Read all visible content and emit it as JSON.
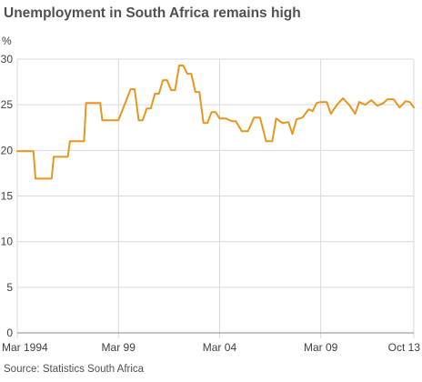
{
  "chart_data": {
    "type": "line",
    "title": "Unemployment in South Africa remains high",
    "ylabel": "%",
    "xlabel": "",
    "source": "Source: Statistics South Africa",
    "ylim": [
      0,
      30
    ],
    "y_ticks": [
      0,
      5,
      10,
      15,
      20,
      25,
      30
    ],
    "x_ticks": [
      {
        "label": "Mar 1994",
        "value": 1994.2
      },
      {
        "label": "Mar 99",
        "value": 1999.2
      },
      {
        "label": "Mar 04",
        "value": 2004.2
      },
      {
        "label": "Mar 09",
        "value": 2009.2
      },
      {
        "label": "Oct 13",
        "value": 2013.8
      }
    ],
    "xlim": [
      1994.2,
      2013.8
    ],
    "grid": "vertical and horizontal",
    "color": "#e8961e",
    "series": [
      {
        "x": [
          1994.2,
          1995.0,
          1995.1,
          1995.9,
          1996.0,
          1996.7,
          1996.8,
          1997.5,
          1997.6,
          1998.3,
          1998.4,
          1999.0,
          1999.2,
          1999.8,
          2000.0,
          2000.2,
          2000.4,
          2000.6,
          2000.8,
          2001.0,
          2001.2,
          2001.4,
          2001.6,
          2001.8,
          2002.0,
          2002.2,
          2002.4,
          2002.6,
          2002.8,
          2003.0,
          2003.2,
          2003.4,
          2003.6,
          2003.8,
          2004.0,
          2004.2,
          2004.5,
          2004.8,
          2005.0,
          2005.3,
          2005.6,
          2005.9,
          2006.2,
          2006.5,
          2006.8,
          2007.0,
          2007.3,
          2007.6,
          2007.8,
          2008.0,
          2008.3,
          2008.6,
          2008.8,
          2009.0,
          2009.2,
          2009.5,
          2009.7,
          2010.0,
          2010.3,
          2010.6,
          2010.9,
          2011.1,
          2011.4,
          2011.7,
          2012.0,
          2012.3,
          2012.5,
          2012.8,
          2013.1,
          2013.4,
          2013.6,
          2013.8
        ],
        "y": [
          19.9,
          19.9,
          16.9,
          16.9,
          19.3,
          19.3,
          21.0,
          21.0,
          25.2,
          25.2,
          23.3,
          23.3,
          23.3,
          26.7,
          26.7,
          23.3,
          23.3,
          24.6,
          24.6,
          26.2,
          26.2,
          27.7,
          27.7,
          26.6,
          26.6,
          29.3,
          29.3,
          28.4,
          28.4,
          26.4,
          26.4,
          23.0,
          23.0,
          24.2,
          24.2,
          23.5,
          23.5,
          23.2,
          23.2,
          22.1,
          22.1,
          23.6,
          23.6,
          21.0,
          21.0,
          23.5,
          23.0,
          23.1,
          21.8,
          23.4,
          23.6,
          24.5,
          24.3,
          25.2,
          25.3,
          25.3,
          24.0,
          25.0,
          25.7,
          25.0,
          24.0,
          25.3,
          25.0,
          25.5,
          24.9,
          25.2,
          25.6,
          25.6,
          24.7,
          25.4,
          25.3,
          24.7
        ]
      }
    ]
  }
}
